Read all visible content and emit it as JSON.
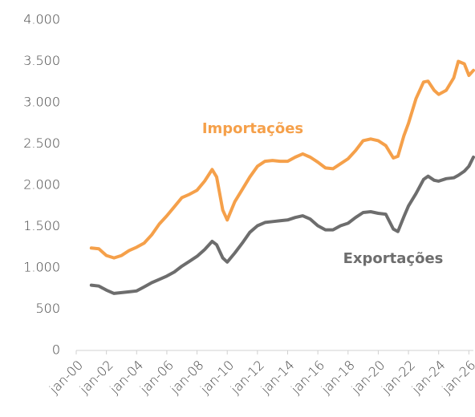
{
  "chart_data": {
    "type": "line",
    "x": [
      2001,
      2001.5,
      2002,
      2002.5,
      2003,
      2003.5,
      2004,
      2004.5,
      2005,
      2005.5,
      2006,
      2006.5,
      2007,
      2007.5,
      2008,
      2008.5,
      2009,
      2009.3,
      2009.7,
      2010,
      2010.5,
      2011,
      2011.5,
      2012,
      2012.5,
      2013,
      2013.5,
      2014,
      2014.5,
      2015,
      2015.5,
      2016,
      2016.5,
      2017,
      2017.5,
      2018,
      2018.5,
      2019,
      2019.5,
      2020,
      2020.5,
      2021,
      2021.3,
      2021.7,
      2022,
      2022.5,
      2023,
      2023.3,
      2023.7,
      2024,
      2024.5,
      2025,
      2025.3,
      2025.7,
      2026,
      2026.3
    ],
    "series": [
      {
        "name": "Importações",
        "color": "#f5a04a",
        "values": [
          1240,
          1230,
          1150,
          1120,
          1150,
          1210,
          1250,
          1300,
          1400,
          1530,
          1630,
          1740,
          1850,
          1890,
          1940,
          2050,
          2190,
          2100,
          1700,
          1580,
          1800,
          1950,
          2100,
          2230,
          2290,
          2300,
          2290,
          2290,
          2340,
          2380,
          2340,
          2280,
          2210,
          2200,
          2260,
          2320,
          2420,
          2540,
          2560,
          2540,
          2480,
          2330,
          2350,
          2600,
          2750,
          3050,
          3250,
          3260,
          3150,
          3100,
          3150,
          3300,
          3500,
          3470,
          3330,
          3390
        ]
      },
      {
        "name": "Exportações",
        "color": "#6d6d6d",
        "values": [
          790,
          780,
          730,
          690,
          700,
          710,
          720,
          770,
          820,
          860,
          900,
          950,
          1020,
          1080,
          1140,
          1220,
          1320,
          1280,
          1120,
          1070,
          1180,
          1300,
          1430,
          1510,
          1550,
          1560,
          1570,
          1580,
          1610,
          1630,
          1590,
          1510,
          1460,
          1460,
          1510,
          1540,
          1610,
          1670,
          1680,
          1660,
          1650,
          1470,
          1440,
          1620,
          1750,
          1900,
          2070,
          2110,
          2060,
          2050,
          2080,
          2090,
          2120,
          2170,
          2230,
          2340
        ]
      }
    ],
    "xlim": [
      2000,
      2026.3
    ],
    "xticks": [
      {
        "value": 2000,
        "label": "jan-00"
      },
      {
        "value": 2002,
        "label": "jan-02"
      },
      {
        "value": 2004,
        "label": "jan-04"
      },
      {
        "value": 2006,
        "label": "jan-06"
      },
      {
        "value": 2008,
        "label": "jan-08"
      },
      {
        "value": 2010,
        "label": "jan-10"
      },
      {
        "value": 2012,
        "label": "jan-12"
      },
      {
        "value": 2014,
        "label": "jan-14"
      },
      {
        "value": 2016,
        "label": "jan-16"
      },
      {
        "value": 2018,
        "label": "jan-18"
      },
      {
        "value": 2020,
        "label": "jan-20"
      },
      {
        "value": 2022,
        "label": "jan-22"
      },
      {
        "value": 2024,
        "label": "jan-24"
      },
      {
        "value": 2026,
        "label": "jan-26"
      }
    ],
    "ylim": [
      0,
      4000
    ],
    "yticks": [
      0,
      500,
      {
        "value": 1000,
        "label": "1.000"
      },
      {
        "value": 1500,
        "label": "1.500"
      },
      {
        "value": 2000,
        "label": "2.000"
      },
      {
        "value": 2500,
        "label": "2.500"
      },
      {
        "value": 3000,
        "label": "3.000"
      },
      {
        "value": 3500,
        "label": "3.500"
      },
      {
        "value": 4000,
        "label": "4.000"
      }
    ],
    "grid": false
  }
}
